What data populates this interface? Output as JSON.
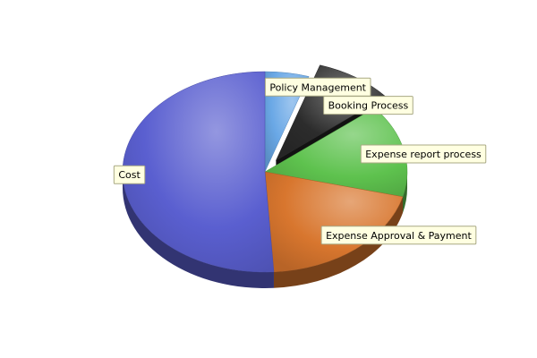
{
  "chart_data": {
    "type": "pie",
    "title": "",
    "three_d": true,
    "exploded": [
      "Booking Process"
    ],
    "slices": [
      {
        "label": "Policy Management",
        "value": 5,
        "color": "#6aa8e6"
      },
      {
        "label": "Booking Process",
        "value": 9,
        "color": "#2c2c2c"
      },
      {
        "label": "Expense report process",
        "value": 15,
        "color": "#5ec24e"
      },
      {
        "label": "Expense Approval & Payment",
        "value": 20,
        "color": "#d8762e"
      },
      {
        "label": "Cost",
        "value": 51,
        "color": "#5a5fd0"
      }
    ]
  }
}
